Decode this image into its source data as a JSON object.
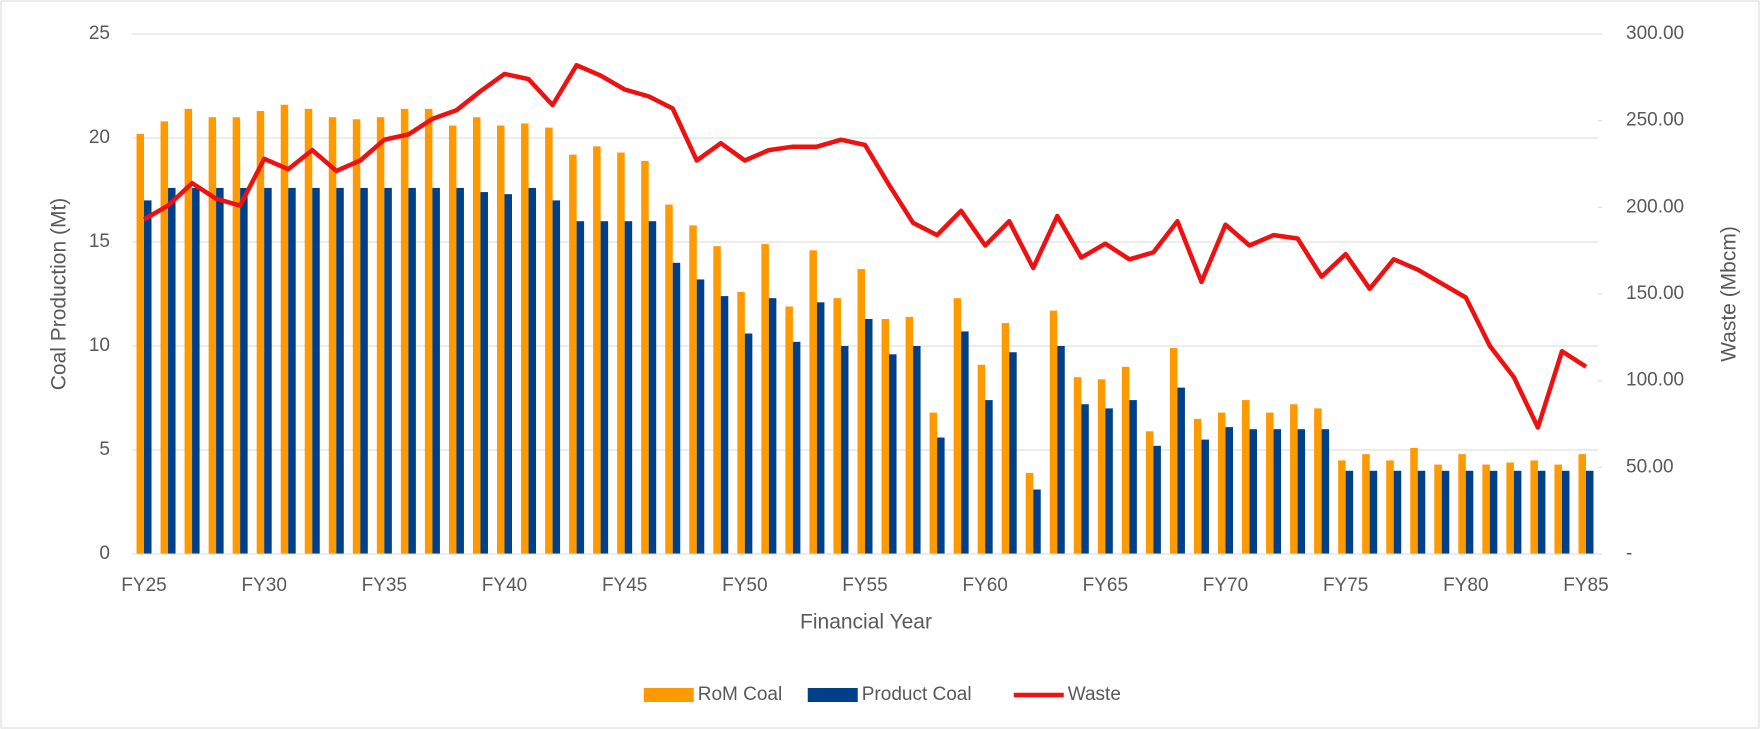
{
  "chart_data": {
    "type": "bar-line",
    "x_label": "Financial Year",
    "y_label": "Coal Production (Mt)",
    "y2_label": "Waste (Mbcm)",
    "categories": [
      "FY25",
      null,
      null,
      null,
      null,
      "FY30",
      null,
      null,
      null,
      null,
      "FY35",
      null,
      null,
      null,
      null,
      "FY40",
      null,
      null,
      null,
      null,
      "FY45",
      null,
      null,
      null,
      null,
      "FY50",
      null,
      null,
      null,
      null,
      "FY55",
      null,
      null,
      null,
      null,
      "FY60",
      null,
      null,
      null,
      null,
      "FY65",
      null,
      null,
      null,
      null,
      "FY70",
      null,
      null,
      null,
      null,
      "FY75",
      null,
      null,
      null,
      null,
      "FY80",
      null,
      null,
      null,
      null,
      "FY85"
    ],
    "series": [
      {
        "name": "RoM Coal",
        "color": "#ff9900",
        "kind": "bar",
        "values": [
          20.2,
          20.8,
          21.4,
          21.0,
          21.0,
          21.3,
          21.6,
          21.4,
          21.0,
          20.9,
          21.0,
          21.4,
          21.4,
          20.6,
          21.0,
          20.6,
          20.7,
          20.5,
          19.2,
          19.6,
          19.3,
          18.9,
          16.8,
          15.8,
          14.8,
          12.6,
          14.9,
          11.9,
          14.6,
          12.3,
          13.7,
          11.3,
          11.4,
          6.8,
          12.3,
          9.1,
          11.1,
          3.9,
          11.7,
          8.5,
          8.4,
          9.0,
          5.9,
          9.9,
          6.5,
          6.8,
          7.4,
          6.8,
          7.2,
          7.0,
          4.5,
          4.8,
          4.5,
          5.1,
          4.3,
          4.8,
          4.3,
          4.4,
          4.5,
          4.3,
          4.8
        ]
      },
      {
        "name": "Product Coal",
        "color": "#003f8a",
        "kind": "bar",
        "values": [
          17.0,
          17.6,
          17.6,
          17.6,
          17.6,
          17.6,
          17.6,
          17.6,
          17.6,
          17.6,
          17.6,
          17.6,
          17.6,
          17.6,
          17.4,
          17.3,
          17.6,
          17.0,
          16.0,
          16.0,
          16.0,
          16.0,
          14.0,
          13.2,
          12.4,
          10.6,
          12.3,
          10.2,
          12.1,
          10.0,
          11.3,
          9.6,
          10.0,
          5.6,
          10.7,
          7.4,
          9.7,
          3.1,
          10.0,
          7.2,
          7.0,
          7.4,
          5.2,
          8.0,
          5.5,
          6.1,
          6.0,
          6.0,
          6.0,
          6.0,
          4.0,
          4.0,
          4.0,
          4.0,
          4.0,
          4.0,
          4.0,
          4.0,
          4.0,
          4.0,
          4.0
        ]
      },
      {
        "name": "Waste",
        "color": "#ee1111",
        "kind": "line",
        "axis": "y2",
        "values": [
          193,
          201,
          214,
          205,
          201,
          228,
          222,
          233,
          221,
          227,
          239,
          242,
          251,
          256,
          267,
          277,
          274,
          259,
          282,
          276,
          268,
          264,
          257,
          227,
          237,
          227,
          233,
          235,
          235,
          239,
          236,
          213,
          191,
          184,
          198,
          178,
          192,
          165,
          195,
          171,
          179,
          170,
          174,
          192,
          157,
          190,
          178,
          184,
          182,
          160,
          173,
          153,
          170,
          164,
          156,
          148,
          120,
          102,
          73,
          117,
          108
        ]
      }
    ],
    "ylim": [
      0,
      25
    ],
    "yticks": [
      0,
      5,
      10,
      15,
      20,
      25
    ],
    "y2lim": [
      0,
      300
    ],
    "y2ticks": [
      {
        "value": 0,
        "label": "-"
      },
      {
        "value": 50,
        "label": "50.00"
      },
      {
        "value": 100,
        "label": "100.00"
      },
      {
        "value": 150,
        "label": "150.00"
      },
      {
        "value": 200,
        "label": "200.00"
      },
      {
        "value": 250,
        "label": "250.00"
      },
      {
        "value": 300,
        "label": "300.00"
      }
    ],
    "grid": true,
    "legend": "bottom"
  }
}
